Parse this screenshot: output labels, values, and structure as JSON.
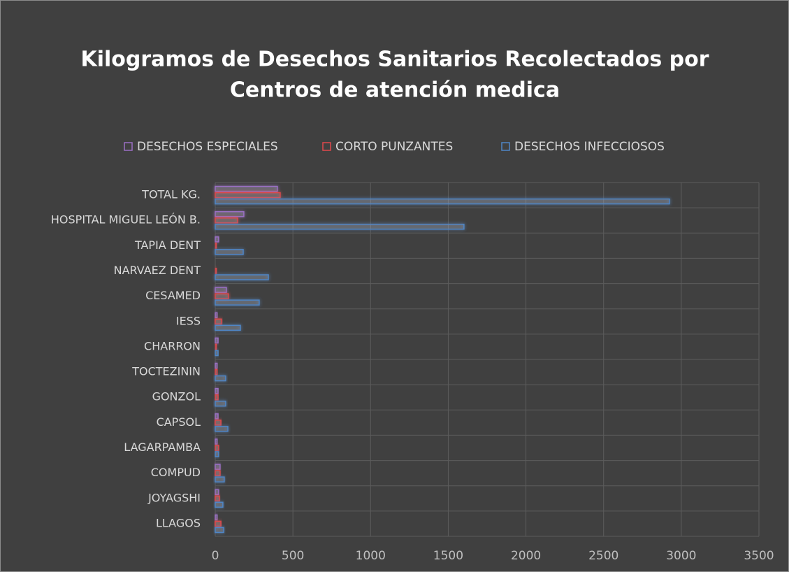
{
  "chart_data": {
    "type": "hbar",
    "title": [
      "Kilogramos de Desechos Sanitarios Recolectados por",
      "Centros de atención medica"
    ],
    "categories": [
      "TOTAL KG.",
      "HOSPITAL MIGUEL LEÓN B.",
      "TAPIA DENT",
      "NARVAEZ DENT",
      "CESAMED",
      "IESS",
      "CHARRON",
      "TOCTEZININ",
      "GONZOL",
      "CAPSOL",
      "LAGARPAMBA",
      "COMPUD",
      "JOYAGSHI",
      "LLAGOS"
    ],
    "series": [
      {
        "name": "DESECHOS ESPECIALES",
        "color": "#9a6fc4",
        "values": [
          400,
          184,
          22,
          0,
          72,
          13,
          18,
          13,
          18,
          18,
          13,
          31,
          22,
          13
        ]
      },
      {
        "name": "CORTO PUNZANTES",
        "color": "#e0484c",
        "values": [
          418,
          144,
          9,
          9,
          85,
          40,
          9,
          13,
          18,
          36,
          22,
          31,
          27,
          36
        ]
      },
      {
        "name": "DESECHOS INFECCIOSOS",
        "color": "#4f86c6",
        "values": [
          2924,
          1601,
          180,
          342,
          283,
          162,
          18,
          67,
          67,
          81,
          22,
          58,
          49,
          54
        ]
      }
    ],
    "xlim": [
      0,
      3500
    ],
    "xticks": [
      0,
      500,
      1000,
      1500,
      2000,
      2500,
      3000,
      3500
    ],
    "grid": true,
    "legend": "top"
  }
}
